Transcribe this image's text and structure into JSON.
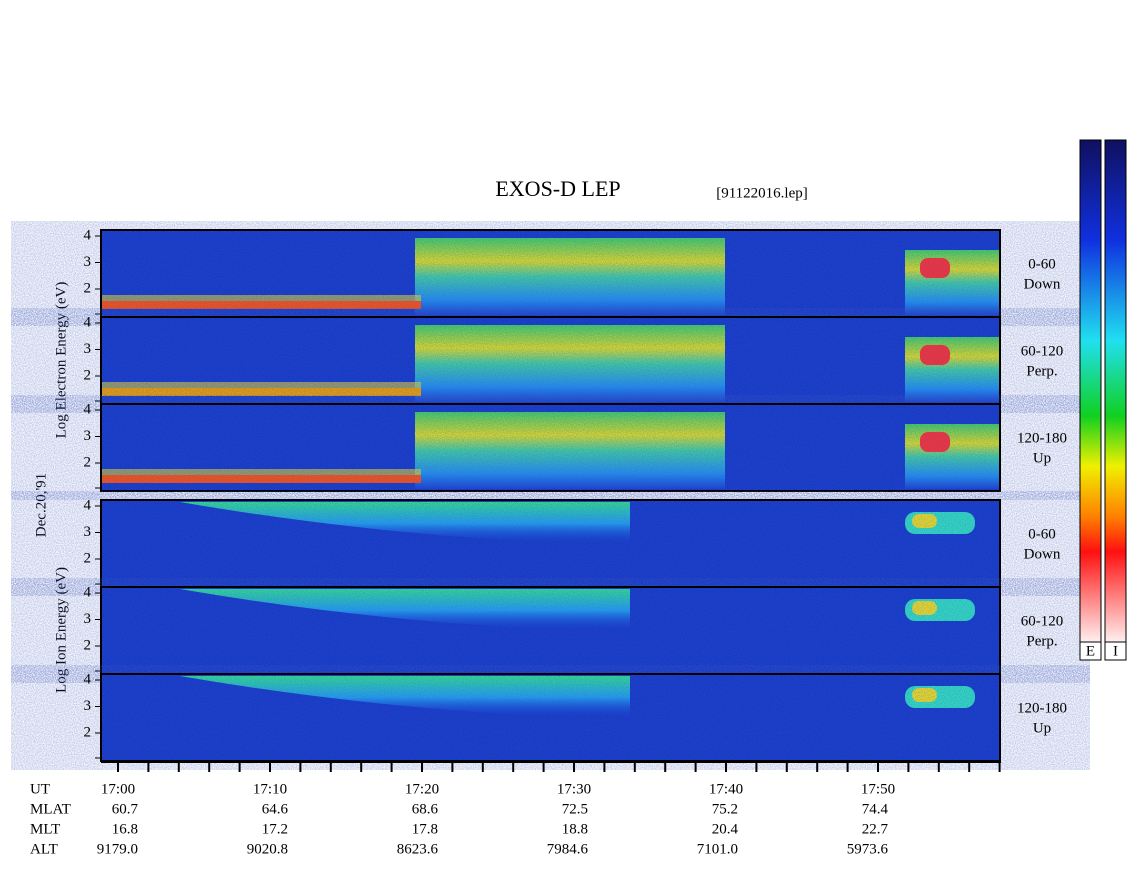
{
  "title": "EXOS-D LEP",
  "file": "[91122016.lep]",
  "date": "Dec.20,'91",
  "electron_axis": "Log Electron Energy (eV)",
  "ion_axis": "Log Ion Energy (eV)",
  "yticks": [
    "4",
    "3",
    "2"
  ],
  "panels": [
    {
      "angle": "0-60",
      "dir": "Down"
    },
    {
      "angle": "60-120",
      "dir": "Perp."
    },
    {
      "angle": "120-180",
      "dir": "Up"
    },
    {
      "angle": "0-60",
      "dir": "Down"
    },
    {
      "angle": "60-120",
      "dir": "Perp."
    },
    {
      "angle": "120-180",
      "dir": "Up"
    }
  ],
  "rows": [
    {
      "label": "UT",
      "values": [
        "17:00",
        "17:10",
        "17:20",
        "17:30",
        "17:40",
        "17:50"
      ]
    },
    {
      "label": "MLAT",
      "values": [
        "60.7",
        "64.6",
        "68.6",
        "72.5",
        "75.2",
        "74.4"
      ]
    },
    {
      "label": "MLT",
      "values": [
        "16.8",
        "17.2",
        "17.8",
        "18.8",
        "20.4",
        "22.7"
      ]
    },
    {
      "label": "ALT",
      "values": [
        "9179.0",
        "9020.8",
        "8623.6",
        "7984.6",
        "7101.0",
        "5973.6"
      ]
    }
  ],
  "colorbars": [
    "E",
    "I"
  ]
}
